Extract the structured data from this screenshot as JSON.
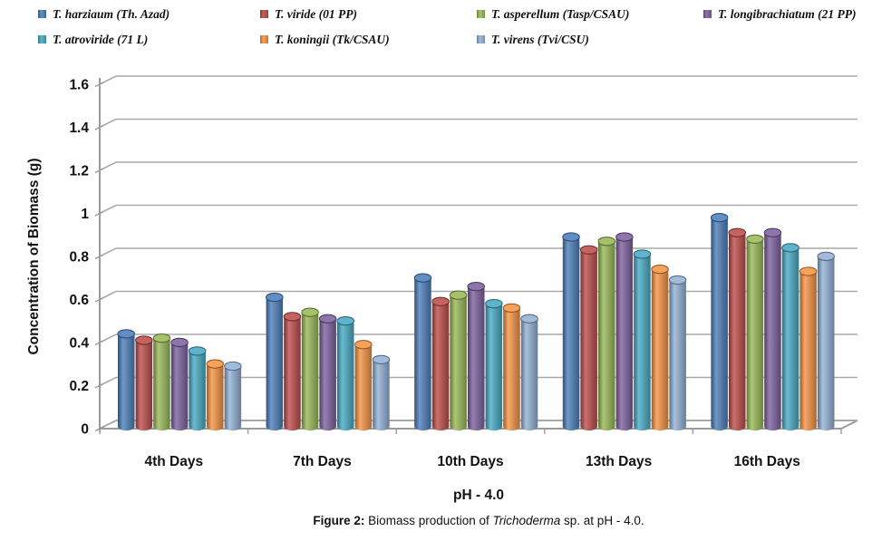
{
  "legend": {
    "items": [
      {
        "label": "T. harziaum (Th. Azad)",
        "color": "#4F81BD"
      },
      {
        "label": "T. viride (01 PP)",
        "color": "#C0504D"
      },
      {
        "label": "T. asperellum (Tasp/CSAU)",
        "color": "#9BBB59"
      },
      {
        "label": "T. longibrachiatum (21 PP)",
        "color": "#8064A2"
      },
      {
        "label": "T. atroviride (71 L)",
        "color": "#4BACC6"
      },
      {
        "label": "T. koningii (Tk/CSAU)",
        "color": "#F79646"
      },
      {
        "label": "T. virens (Tvi/CSU)",
        "color": "#95B3D7"
      }
    ]
  },
  "chart_data": {
    "type": "bar",
    "subtype": "3d-cylinder",
    "title": "",
    "categories": [
      "4th Days",
      "7th Days",
      "10th Days",
      "13th Days",
      "16th Days"
    ],
    "series": [
      {
        "name": "T. harziaum (Th. Azad)",
        "color": "#4F81BD",
        "values": [
          0.43,
          0.6,
          0.69,
          0.88,
          0.97
        ]
      },
      {
        "name": "T. viride (01 PP)",
        "color": "#C0504D",
        "values": [
          0.4,
          0.51,
          0.58,
          0.82,
          0.9
        ]
      },
      {
        "name": "T. asperellum (Tasp/CSAU)",
        "color": "#9BBB59",
        "values": [
          0.41,
          0.53,
          0.61,
          0.86,
          0.87
        ]
      },
      {
        "name": "T. longibrachiatum (21 PP)",
        "color": "#8064A2",
        "values": [
          0.39,
          0.5,
          0.65,
          0.88,
          0.9
        ]
      },
      {
        "name": "T. atroviride (71 L)",
        "color": "#4BACC6",
        "values": [
          0.35,
          0.49,
          0.57,
          0.8,
          0.83
        ]
      },
      {
        "name": "T. koningii (Tk/CSAU)",
        "color": "#F79646",
        "values": [
          0.29,
          0.38,
          0.55,
          0.73,
          0.72
        ]
      },
      {
        "name": "T. virens (Tvi/CSU)",
        "color": "#95B3D7",
        "values": [
          0.28,
          0.31,
          0.5,
          0.68,
          0.79
        ]
      }
    ],
    "xlabel": "pH - 4.0",
    "ylabel": "Concentration of Biomass (g)",
    "ylim": [
      0,
      1.6
    ],
    "ytick_step": 0.2,
    "y_ticks": [
      "0",
      "0.2",
      "0.4",
      "0.6",
      "0.8",
      "1",
      "1.2",
      "1.4",
      "1.6"
    ],
    "grid": true,
    "legend_position": "top",
    "gridline_color": "#a9a9a9",
    "axis_color": "#9a9a9a"
  },
  "caption": {
    "prefix": "Figure 2:",
    "before_italic": " Biomass production of ",
    "italic": "Trichoderma",
    "after_italic": " sp. at pH - 4.0."
  }
}
